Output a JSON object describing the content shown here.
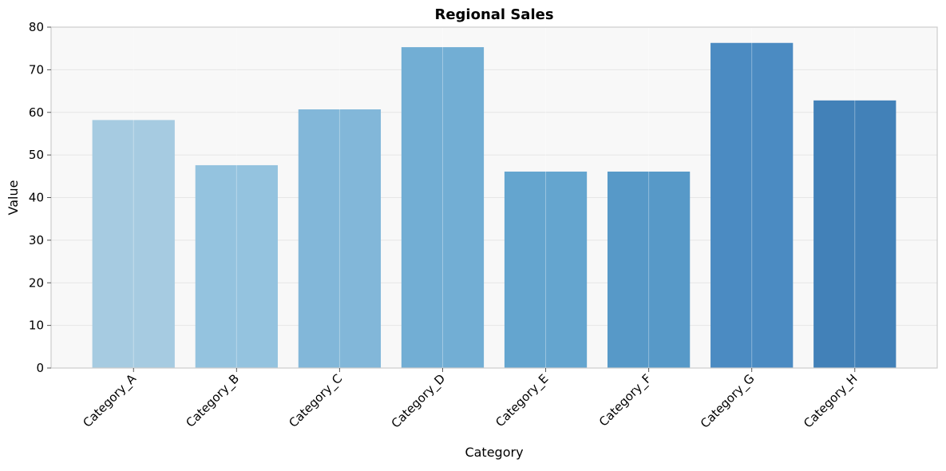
{
  "chart_data": {
    "type": "bar",
    "title": "Regional Sales",
    "xlabel": "Category",
    "ylabel": "Value",
    "categories": [
      "Category_A",
      "Category_B",
      "Category_C",
      "Category_D",
      "Category_E",
      "Category_F",
      "Category_G",
      "Category_H"
    ],
    "values": [
      58.2,
      47.6,
      60.7,
      75.3,
      46.1,
      46.1,
      76.3,
      62.8
    ],
    "ylim": [
      0,
      80
    ],
    "yticks": [
      0,
      10,
      20,
      30,
      40,
      50,
      60,
      70,
      80
    ],
    "grid": true,
    "bar_colors": [
      "#a6cbe1",
      "#94c3df",
      "#82b7d9",
      "#72aed4",
      "#64a5cf",
      "#5799c8",
      "#4b8bc2",
      "#4281b8"
    ],
    "plot_background": "#f8f8f8"
  }
}
